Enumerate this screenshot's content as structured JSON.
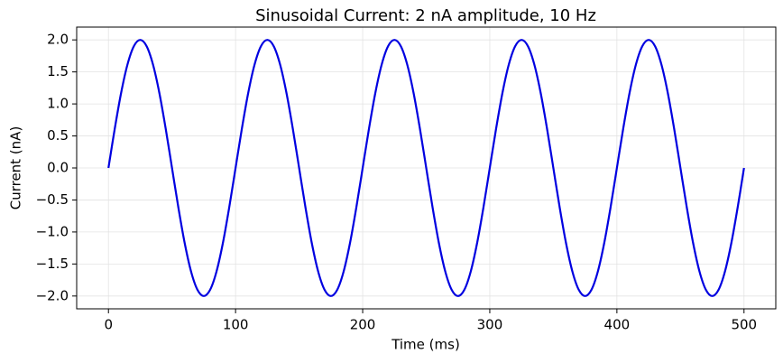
{
  "chart_data": {
    "type": "line",
    "title": "Sinusoidal Current: 2 nA amplitude, 10 Hz",
    "x_label": "Time (ms)",
    "y_label": "Current (nA)",
    "x": [
      0,
      5,
      10,
      15,
      20,
      25,
      30,
      35,
      40,
      45,
      50,
      55,
      60,
      65,
      70,
      75,
      80,
      85,
      90,
      95,
      100,
      105,
      110,
      115,
      120,
      125,
      130,
      135,
      140,
      145,
      150,
      155,
      160,
      165,
      170,
      175,
      180,
      185,
      190,
      195,
      200,
      205,
      210,
      215,
      220,
      225,
      230,
      235,
      240,
      245,
      250,
      255,
      260,
      265,
      270,
      275,
      280,
      285,
      290,
      295,
      300,
      305,
      310,
      315,
      320,
      325,
      330,
      335,
      340,
      345,
      350,
      355,
      360,
      365,
      370,
      375,
      380,
      385,
      390,
      395,
      400,
      405,
      410,
      415,
      420,
      425,
      430,
      435,
      440,
      445,
      450,
      455,
      460,
      465,
      470,
      475,
      480,
      485,
      490,
      495,
      500
    ],
    "series": [
      {
        "color": "#0000e0",
        "values": [
          0,
          0.618,
          1.176,
          1.618,
          1.902,
          2,
          1.902,
          1.618,
          1.176,
          0.618,
          0,
          -0.618,
          -1.176,
          -1.618,
          -1.902,
          -2,
          -1.902,
          -1.618,
          -1.176,
          -0.618,
          0,
          0.618,
          1.176,
          1.618,
          1.902,
          2,
          1.902,
          1.618,
          1.176,
          0.618,
          0,
          -0.618,
          -1.176,
          -1.618,
          -1.902,
          -2,
          -1.902,
          -1.618,
          -1.176,
          -0.618,
          0,
          0.618,
          1.176,
          1.618,
          1.902,
          2,
          1.902,
          1.618,
          1.176,
          0.618,
          0,
          -0.618,
          -1.176,
          -1.618,
          -1.902,
          -2,
          -1.902,
          -1.618,
          -1.176,
          -0.618,
          0,
          0.618,
          1.176,
          1.618,
          1.902,
          2,
          1.902,
          1.618,
          1.176,
          0.618,
          0,
          -0.618,
          -1.176,
          -1.618,
          -1.902,
          -2,
          -1.902,
          -1.618,
          -1.176,
          -0.618,
          0,
          0.618,
          1.176,
          1.618,
          1.902,
          2,
          1.902,
          1.618,
          1.176,
          0.618,
          0,
          -0.618,
          -1.176,
          -1.618,
          -1.902,
          -2,
          -1.902,
          -1.618,
          -1.176,
          -0.618,
          0
        ]
      }
    ],
    "xlim": [
      -25,
      525
    ],
    "ylim": [
      -2.2,
      2.2
    ],
    "xticks": [
      0,
      100,
      200,
      300,
      400,
      500
    ],
    "yticks": [
      {
        "value": 2,
        "label": "2.0"
      },
      {
        "value": 1.5,
        "label": "1.5"
      },
      {
        "value": 1,
        "label": "1.0"
      },
      {
        "value": 0.5,
        "label": "0.5"
      },
      {
        "value": 0,
        "label": "0.0"
      },
      {
        "value": -0.5,
        "label": "−0.5"
      },
      {
        "value": -1,
        "label": "−1.0"
      },
      {
        "value": -1.5,
        "label": "−1.5"
      },
      {
        "value": -2,
        "label": "−2.0"
      }
    ],
    "grid": true
  }
}
